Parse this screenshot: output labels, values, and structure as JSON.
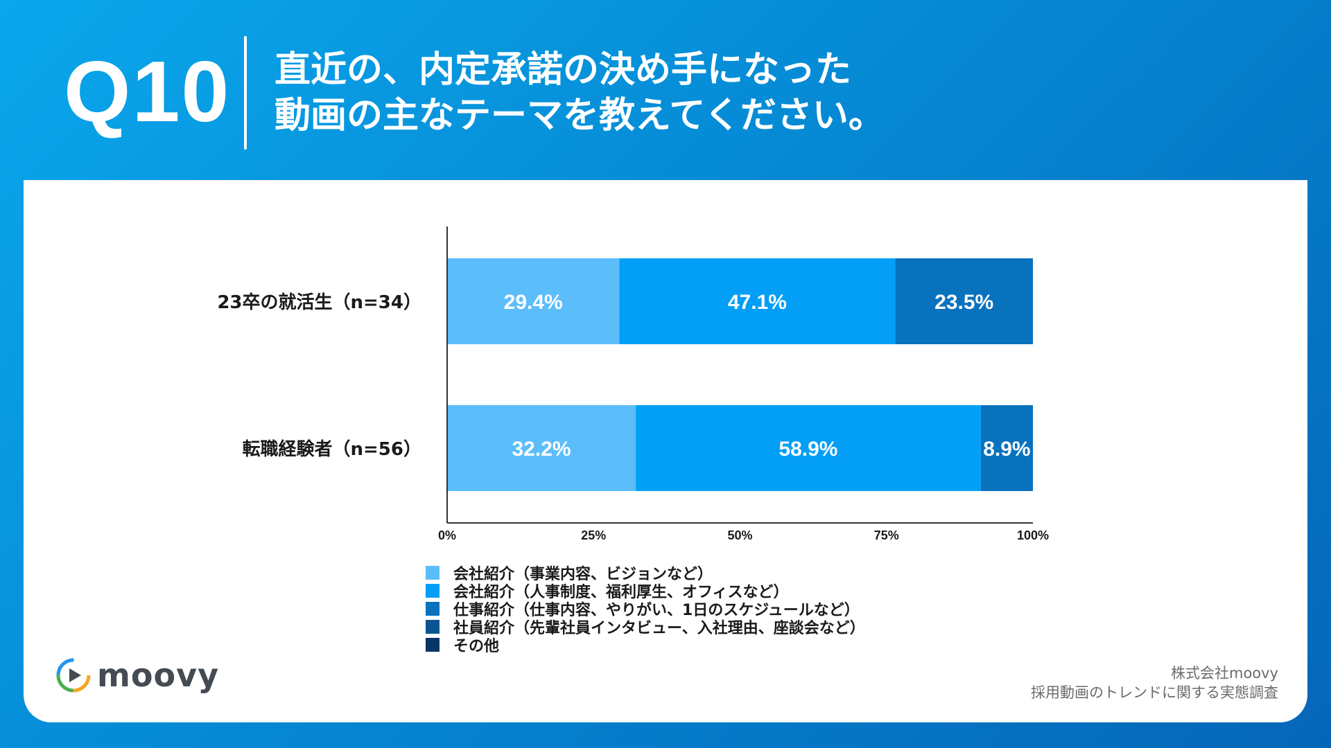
{
  "header": {
    "question_number": "Q10",
    "title_line1": "直近の、内定承諾の決め手になった",
    "title_line2": "動画の主なテーマを教えてください。"
  },
  "chart_data": {
    "type": "bar",
    "orientation": "horizontal",
    "stacked": true,
    "categories": [
      "23卒の就活生（n=34）",
      "転職経験者（n=56）"
    ],
    "series": [
      {
        "name": "会社紹介（事業内容、ビジョンなど）",
        "color": "#5cbdfb",
        "values": [
          29.4,
          32.2
        ]
      },
      {
        "name": "会社紹介（人事制度、福利厚生、オフィスなど）",
        "color": "#039ff7",
        "values": [
          47.1,
          58.9
        ]
      },
      {
        "name": "仕事紹介（仕事内容、やりがい、1日のスケジュールなど）",
        "color": "#0872bd",
        "values": [
          23.5,
          8.9
        ]
      },
      {
        "name": "社員紹介（先輩社員インタビュー、入社理由、座談会など）",
        "color": "#0a5591",
        "values": [
          0,
          0
        ]
      },
      {
        "name": "その他",
        "color": "#073566",
        "values": [
          0,
          0
        ]
      }
    ],
    "data_labels": [
      [
        "29.4%",
        "47.1%",
        "23.5%"
      ],
      [
        "32.2%",
        "58.9%",
        "8.9%"
      ]
    ],
    "xlim": [
      0,
      100
    ],
    "xticks": [
      "0%",
      "25%",
      "50%",
      "75%",
      "100%"
    ],
    "grid": false,
    "legend_position": "bottom"
  },
  "logo": {
    "text": "moovy",
    "icon": "play-icon"
  },
  "credit": {
    "line1": "株式会社moovy",
    "line2": "採用動画のトレンドに関する実態調査"
  }
}
